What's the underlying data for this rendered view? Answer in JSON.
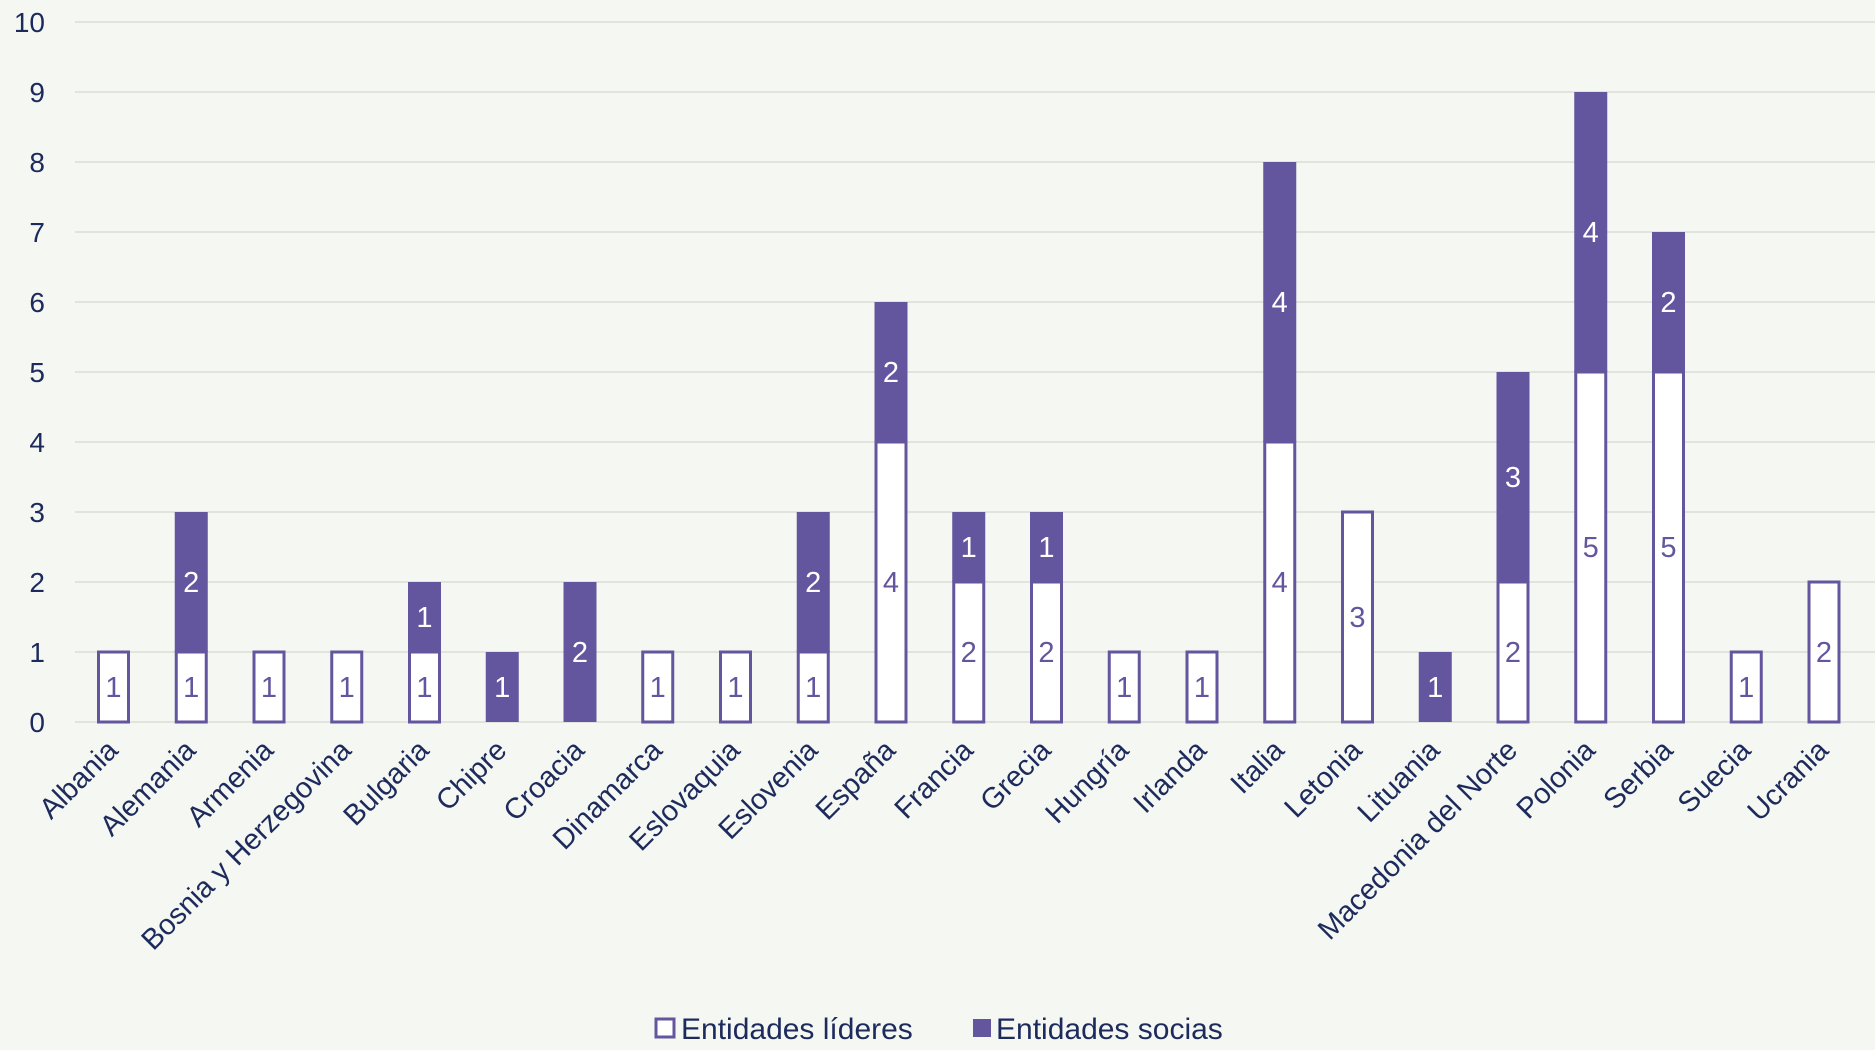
{
  "chart_data": {
    "type": "bar",
    "stacked": true,
    "categories": [
      "Albania",
      "Alemania",
      "Armenia",
      "Bosnia y Herzegovina",
      "Bulgaria",
      "Chipre",
      "Croacia",
      "Dinamarca",
      "Eslovaquia",
      "Eslovenia",
      "España",
      "Francia",
      "Grecia",
      "Hungría",
      "Irlanda",
      "Italia",
      "Letonia",
      "Lituania",
      "Macedonia del Norte",
      "Polonia",
      "Serbia",
      "Suecia",
      "Ucrania"
    ],
    "series": [
      {
        "name": "Entidades líderes",
        "color": "#ffffff",
        "stroke": "#63559e",
        "values": [
          1,
          1,
          1,
          1,
          1,
          0,
          0,
          1,
          1,
          1,
          4,
          2,
          2,
          1,
          1,
          4,
          3,
          0,
          2,
          5,
          5,
          1,
          2
        ]
      },
      {
        "name": "Entidades socias",
        "color": "#63559e",
        "values": [
          0,
          2,
          0,
          0,
          1,
          1,
          2,
          0,
          0,
          2,
          2,
          1,
          1,
          0,
          0,
          4,
          0,
          1,
          3,
          4,
          2,
          0,
          0
        ]
      }
    ],
    "ylim": [
      0,
      10
    ],
    "yticks": [
      "0",
      "1",
      "2",
      "3",
      "4",
      "5",
      "6",
      "7",
      "8",
      "9",
      "10"
    ],
    "grid": true,
    "legend_position": "bottom-center",
    "colors": {
      "background": "#f5f7f2",
      "grid": "#d9ddd6",
      "text": "#1d2a5c",
      "accent": "#63559e"
    }
  }
}
